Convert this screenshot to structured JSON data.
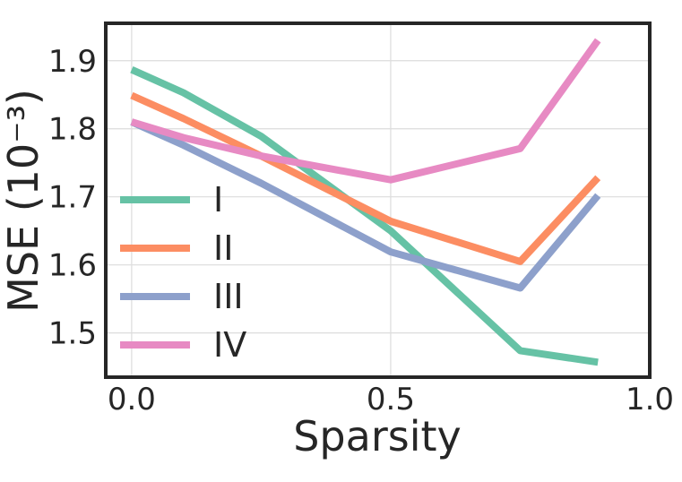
{
  "chart_data": {
    "type": "line",
    "xlabel": "Sparsity",
    "ylabel": "MSE (10⁻³)",
    "xlim": [
      -0.05,
      1.0
    ],
    "ylim": [
      1.435,
      1.955
    ],
    "x_ticks": [
      0.0,
      0.5,
      1.0
    ],
    "x_tick_labels": [
      "0.0",
      "0.5",
      "1.0"
    ],
    "y_ticks": [
      1.5,
      1.6,
      1.7,
      1.8,
      1.9
    ],
    "y_tick_labels": [
      "1.5",
      "1.6",
      "1.7",
      "1.8",
      "1.9"
    ],
    "grid": true,
    "legend_position": "left",
    "series": [
      {
        "name": "I",
        "color": "#66c2a5",
        "x": [
          0.0,
          0.1,
          0.25,
          0.5,
          0.75,
          0.9
        ],
        "y": [
          1.887,
          1.853,
          1.789,
          1.65,
          1.474,
          1.457
        ]
      },
      {
        "name": "II",
        "color": "#fc8d62",
        "x": [
          0.0,
          0.1,
          0.25,
          0.5,
          0.75,
          0.9
        ],
        "y": [
          1.849,
          1.815,
          1.76,
          1.664,
          1.605,
          1.728
        ]
      },
      {
        "name": "III",
        "color": "#8da0cb",
        "x": [
          0.0,
          0.1,
          0.25,
          0.5,
          0.75,
          0.9
        ],
        "y": [
          1.81,
          1.776,
          1.72,
          1.619,
          1.566,
          1.702
        ]
      },
      {
        "name": "IV",
        "color": "#e78ac3",
        "x": [
          0.0,
          0.1,
          0.25,
          0.5,
          0.75,
          0.9
        ],
        "y": [
          1.81,
          1.787,
          1.76,
          1.725,
          1.771,
          1.93
        ]
      }
    ]
  }
}
